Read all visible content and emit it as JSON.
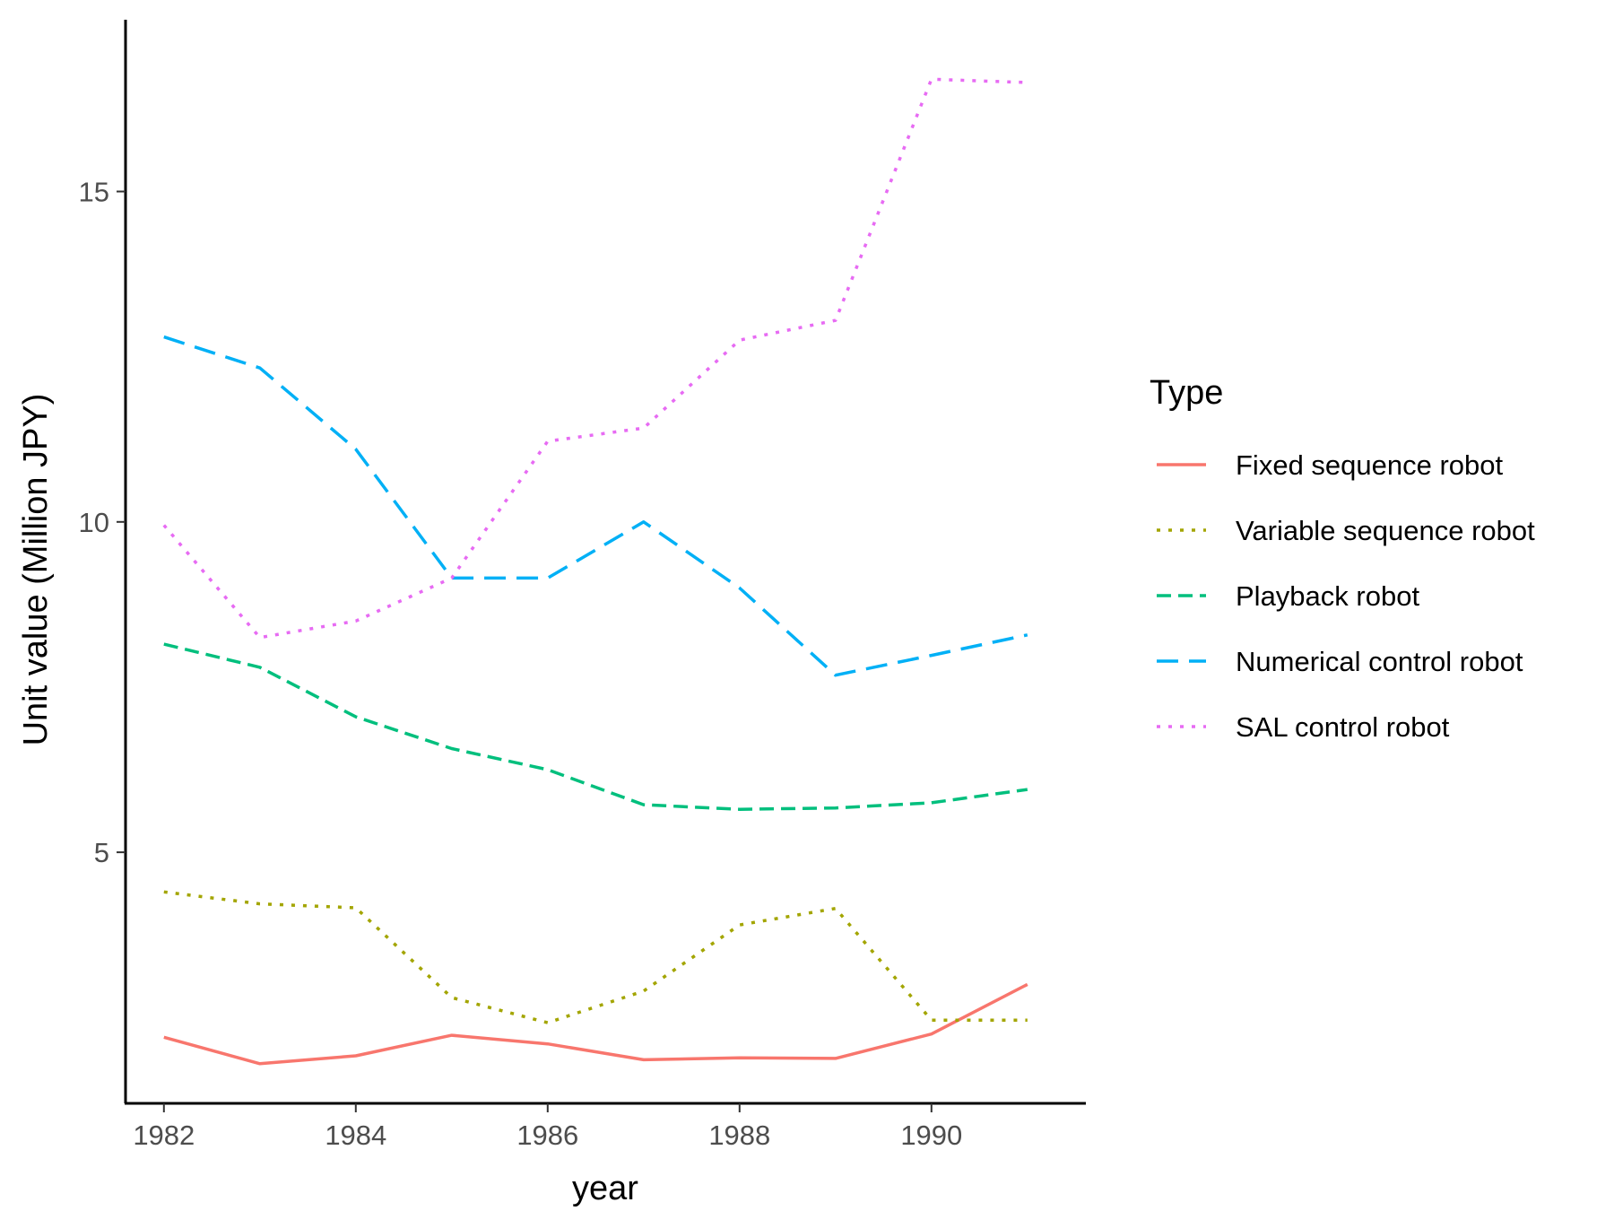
{
  "chart_data": {
    "type": "line",
    "title": "",
    "xlabel": "year",
    "ylabel": "Unit value (Million JPY)",
    "x": [
      1982,
      1983,
      1984,
      1985,
      1986,
      1987,
      1988,
      1989,
      1990,
      1991
    ],
    "xticks": [
      "1982",
      "1984",
      "1986",
      "1988",
      "1990"
    ],
    "yticks": [
      "5",
      "10",
      "15"
    ],
    "xlim": [
      1981.6,
      1991.6
    ],
    "ylim": [
      1.2,
      17.6
    ],
    "grid": false,
    "legend": {
      "title": "Type",
      "placement": "right"
    },
    "series": [
      {
        "name": "Fixed sequence robot",
        "color": "#F8766D",
        "dash": "solid",
        "values": [
          2.2,
          1.8,
          1.92,
          2.23,
          2.1,
          1.86,
          1.89,
          1.88,
          2.25,
          3.0
        ]
      },
      {
        "name": "Variable sequence robot",
        "color": "#A3A500",
        "dash": "dotted",
        "values": [
          4.4,
          4.22,
          4.16,
          2.8,
          2.42,
          2.9,
          3.9,
          4.15,
          2.46,
          2.46
        ]
      },
      {
        "name": "Playback robot",
        "color": "#00BF7D",
        "dash": "dashed",
        "values": [
          8.15,
          7.8,
          7.05,
          6.57,
          6.25,
          5.72,
          5.65,
          5.67,
          5.75,
          5.95
        ]
      },
      {
        "name": "Numerical control robot",
        "color": "#00B0F6",
        "dash": "longdash",
        "values": [
          12.8,
          12.33,
          11.1,
          9.15,
          9.15,
          10.0,
          9.0,
          7.68,
          7.98,
          8.29
        ]
      },
      {
        "name": "SAL control robot",
        "color": "#E76BF3",
        "dash": "dotted",
        "values": [
          9.95,
          8.25,
          8.5,
          9.15,
          11.22,
          11.42,
          12.75,
          13.05,
          16.7,
          16.65
        ]
      }
    ]
  }
}
